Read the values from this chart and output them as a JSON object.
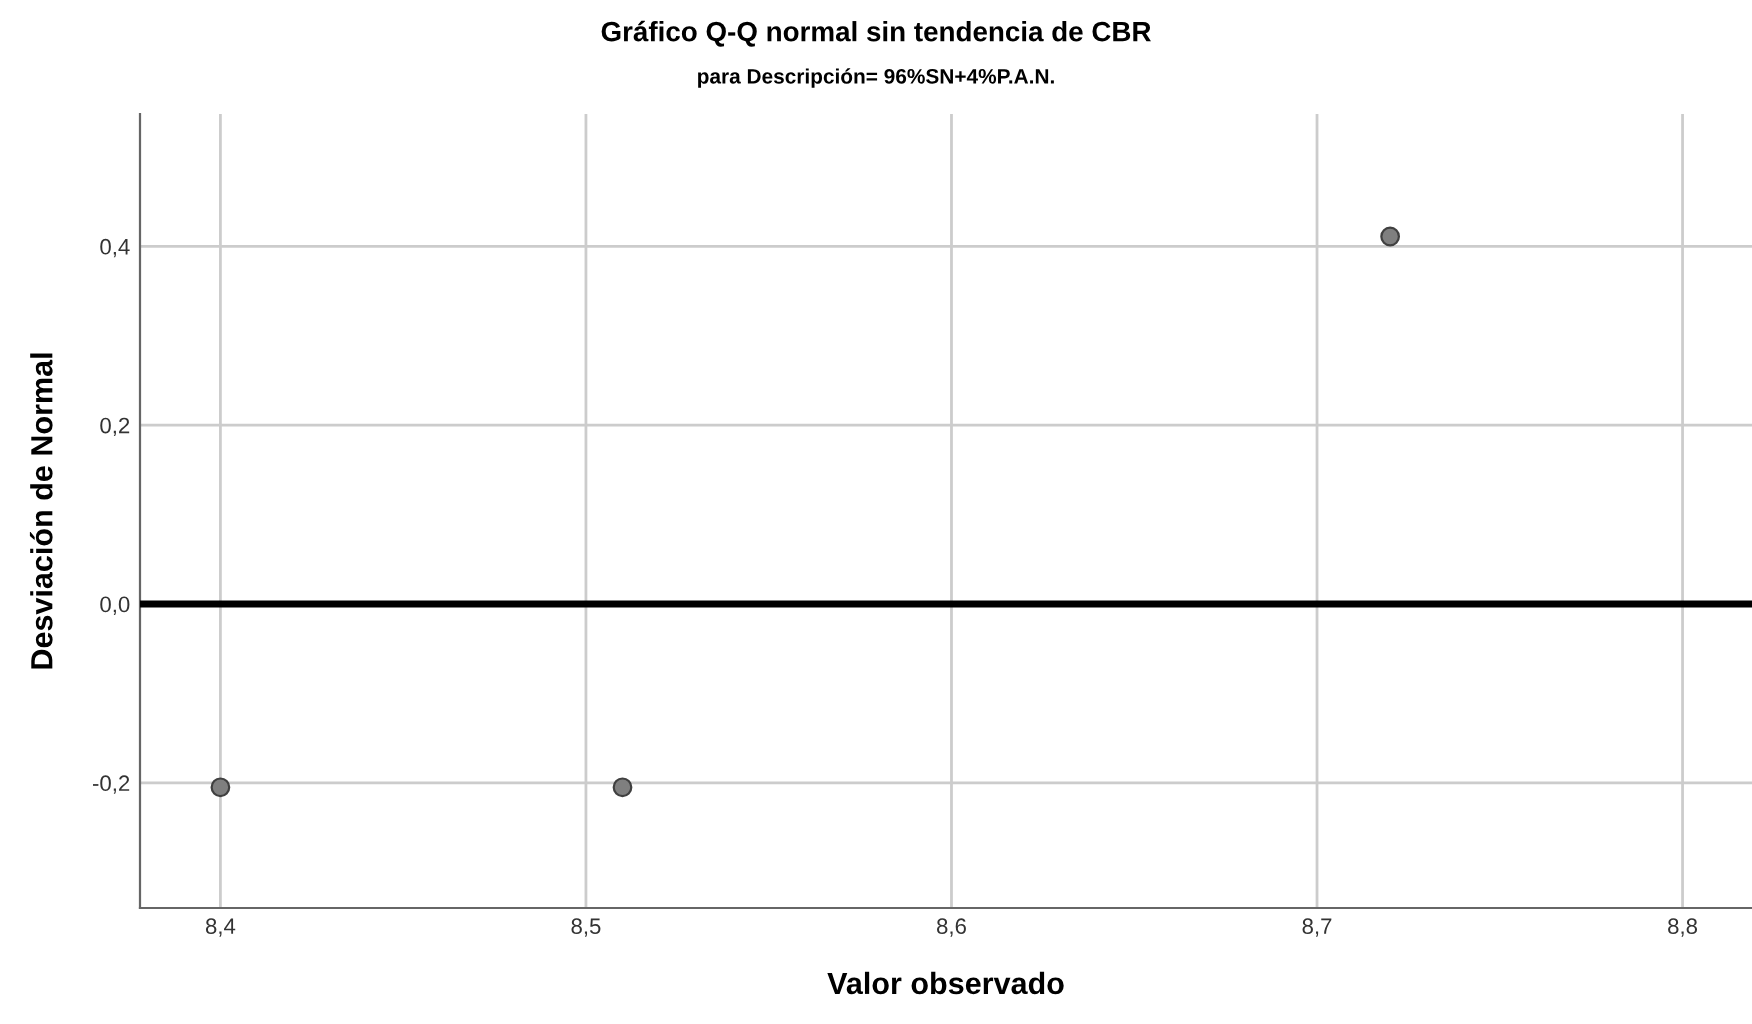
{
  "chart_data": {
    "type": "scatter",
    "title": "Gráfico Q-Q normal sin tendencia de CBR",
    "subtitle": "para Descripción= 96%SN+4%P.A.N.",
    "xlabel": "Valor observado",
    "ylabel": "Desviación de Normal",
    "x": [
      8.4,
      8.51,
      8.72
    ],
    "values": [
      -0.205,
      -0.205,
      0.411
    ],
    "color": "#7f7f7f",
    "marker": "circle",
    "grid": true,
    "legend": false,
    "xlim": [
      8.378,
      8.819
    ],
    "xticks": [
      {
        "value": 8.4,
        "label": "8,4"
      },
      {
        "value": 8.5,
        "label": "8,5"
      },
      {
        "value": 8.6,
        "label": "8,6"
      },
      {
        "value": 8.7,
        "label": "8,7"
      },
      {
        "value": 8.8,
        "label": "8,8"
      }
    ],
    "ylim": [
      -0.34,
      0.548
    ],
    "yticks": [
      {
        "value": -0.2,
        "label": "-0,2"
      },
      {
        "value": 0.0,
        "label": "0,0"
      },
      {
        "value": 0.2,
        "label": "0,2"
      },
      {
        "value": 0.4,
        "label": "0,4"
      }
    ],
    "ref_lines": [
      {
        "axis": "y",
        "value": 0.0,
        "color": "#000000",
        "line_style": "solid"
      }
    ]
  }
}
